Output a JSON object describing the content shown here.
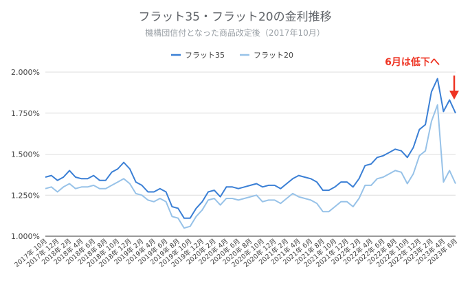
{
  "chart_data": {
    "type": "line",
    "title": "フラット35・フラット20の金利推移",
    "subtitle": "機構団信付となった商品改定後（2017年10月）",
    "legend_position": "top-center",
    "grid": true,
    "ylim": [
      1.0,
      2.0
    ],
    "yticks": [
      "1.000%",
      "1.250%",
      "1.500%",
      "1.750%",
      "2.000%"
    ],
    "ytick_values": [
      1.0,
      1.25,
      1.5,
      1.75,
      2.0
    ],
    "x": [
      "2017年10月",
      "2017年11月",
      "2017年12月",
      "2018年1月",
      "2018年2月",
      "2018年3月",
      "2018年4月",
      "2018年5月",
      "2018年6月",
      "2018年7月",
      "2018年8月",
      "2018年9月",
      "2018年10月",
      "2018年11月",
      "2018年12月",
      "2019年1月",
      "2019年2月",
      "2019年3月",
      "2019年4月",
      "2019年5月",
      "2019年6月",
      "2019年7月",
      "2019年8月",
      "2019年9月",
      "2019年10月",
      "2019年11月",
      "2019年12月",
      "2020年1月",
      "2020年2月",
      "2020年3月",
      "2020年4月",
      "2020年5月",
      "2020年6月",
      "2020年7月",
      "2020年8月",
      "2020年9月",
      "2020年10月",
      "2020年11月",
      "2020年12月",
      "2021年1月",
      "2021年2月",
      "2021年3月",
      "2021年4月",
      "2021年5月",
      "2021年6月",
      "2021年7月",
      "2021年8月",
      "2021年9月",
      "2021年10月",
      "2021年11月",
      "2021年12月",
      "2022年1月",
      "2022年2月",
      "2022年3月",
      "2022年4月",
      "2022年5月",
      "2022年6月",
      "2022年7月",
      "2022年8月",
      "2022年9月",
      "2022年10月",
      "2022年11月",
      "2022年12月",
      "2023年1月",
      "2023年2月",
      "2023年3月",
      "2023年4月",
      "2023年5月",
      "2023年6月"
    ],
    "xtick_labels": [
      "2017年 10月",
      "2017年 12月",
      "2018年 2月",
      "2018年 4月",
      "2018年 6月",
      "2018年 8月",
      "2018年 10月",
      "2018年 12月",
      "2019年 2月",
      "2019年 4月",
      "2019年 6月",
      "2019年 8月",
      "2019年 10月",
      "2019年 12月",
      "2020年 2月",
      "2020年 4月",
      "2020年 6月",
      "2020年 8月",
      "2020年 10月",
      "2020年 12月",
      "2021年 2月",
      "2021年 4月",
      "2021年 6月",
      "2021年 8月",
      "2021年 10月",
      "2021年 12月",
      "2022年 2月",
      "2022年 4月",
      "2022年 6月",
      "2022年 8月",
      "2022年 10月",
      "2022年 12月",
      "2023年 2月",
      "2023年 4月",
      "2023年 6月"
    ],
    "series": [
      {
        "name": "フラット35",
        "color": "#3a7fd5",
        "values": [
          1.36,
          1.37,
          1.34,
          1.36,
          1.4,
          1.36,
          1.35,
          1.35,
          1.37,
          1.34,
          1.34,
          1.39,
          1.41,
          1.45,
          1.41,
          1.33,
          1.31,
          1.27,
          1.27,
          1.29,
          1.27,
          1.18,
          1.17,
          1.11,
          1.11,
          1.17,
          1.21,
          1.27,
          1.28,
          1.24,
          1.3,
          1.3,
          1.29,
          1.3,
          1.31,
          1.32,
          1.3,
          1.31,
          1.31,
          1.29,
          1.32,
          1.35,
          1.37,
          1.36,
          1.35,
          1.33,
          1.28,
          1.28,
          1.3,
          1.33,
          1.33,
          1.3,
          1.35,
          1.43,
          1.44,
          1.48,
          1.49,
          1.51,
          1.53,
          1.52,
          1.48,
          1.54,
          1.65,
          1.68,
          1.88,
          1.96,
          1.76,
          1.83,
          1.75
        ]
      },
      {
        "name": "フラット20",
        "color": "#97c2e8",
        "values": [
          1.29,
          1.3,
          1.27,
          1.3,
          1.32,
          1.29,
          1.3,
          1.3,
          1.31,
          1.29,
          1.29,
          1.31,
          1.33,
          1.35,
          1.32,
          1.26,
          1.25,
          1.22,
          1.21,
          1.23,
          1.21,
          1.12,
          1.11,
          1.05,
          1.06,
          1.12,
          1.16,
          1.22,
          1.23,
          1.19,
          1.23,
          1.23,
          1.22,
          1.23,
          1.24,
          1.25,
          1.21,
          1.22,
          1.22,
          1.2,
          1.23,
          1.26,
          1.24,
          1.23,
          1.22,
          1.2,
          1.15,
          1.15,
          1.18,
          1.21,
          1.21,
          1.18,
          1.23,
          1.31,
          1.31,
          1.35,
          1.36,
          1.38,
          1.4,
          1.39,
          1.32,
          1.38,
          1.49,
          1.52,
          1.7,
          1.8,
          1.33,
          1.4,
          1.32
        ]
      }
    ],
    "annotation": {
      "text": "6月は低下へ",
      "color": "#ee3322"
    }
  }
}
